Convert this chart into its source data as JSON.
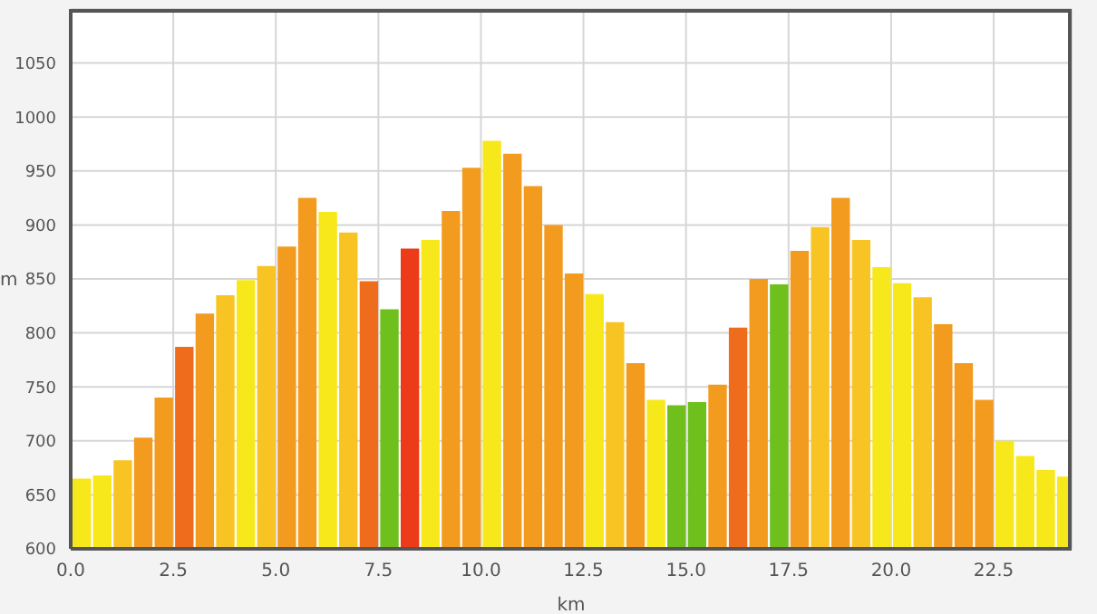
{
  "chart_data": {
    "type": "bar",
    "xlabel": "km",
    "ylabel": "m",
    "x": [
      0.25,
      0.75,
      1.25,
      1.75,
      2.25,
      2.75,
      3.25,
      3.75,
      4.25,
      4.75,
      5.25,
      5.75,
      6.25,
      6.75,
      7.25,
      7.75,
      8.25,
      8.75,
      9.25,
      9.75,
      10.25,
      10.75,
      11.25,
      11.75,
      12.25,
      12.75,
      13.25,
      13.75,
      14.25,
      14.75,
      15.25,
      15.75,
      16.25,
      16.75,
      17.25,
      17.75,
      18.25,
      18.75,
      19.25,
      19.75,
      20.25,
      20.75,
      21.25,
      21.75,
      22.25,
      22.75,
      23.25,
      23.75,
      24.25
    ],
    "values": [
      665,
      668,
      682,
      703,
      740,
      787,
      818,
      835,
      849,
      862,
      880,
      925,
      912,
      893,
      848,
      822,
      878,
      886,
      913,
      953,
      978,
      966,
      936,
      900,
      855,
      836,
      810,
      772,
      738,
      733,
      736,
      752,
      805,
      850,
      845,
      876,
      898,
      925,
      886,
      861,
      846,
      833,
      808,
      772,
      738,
      700,
      686,
      673,
      667
    ],
    "colors": [
      "#f7e81c",
      "#f7e81c",
      "#f8c423",
      "#f39b1f",
      "#f39b1f",
      "#ef6c1d",
      "#f39b1f",
      "#f8c423",
      "#f7e81c",
      "#f8c423",
      "#f39b1f",
      "#f39b1f",
      "#f7e81c",
      "#f8c423",
      "#ef6c1d",
      "#6fc01d",
      "#ec3b18",
      "#f7e81c",
      "#f39b1f",
      "#f39b1f",
      "#f7e81c",
      "#f39b1f",
      "#f39b1f",
      "#f39b1f",
      "#f39b1f",
      "#f7e81c",
      "#f8c423",
      "#f39b1f",
      "#f7e81c",
      "#6fc01d",
      "#6fc01d",
      "#f39b1f",
      "#ef6c1d",
      "#f39b1f",
      "#6fc01d",
      "#f39b1f",
      "#f8c423",
      "#f39b1f",
      "#f8c423",
      "#f7e81c",
      "#f7e81c",
      "#f8c423",
      "#f39b1f",
      "#f39b1f",
      "#f39b1f",
      "#f7e81c",
      "#f7e81c",
      "#f7e81c",
      "#f7e81c"
    ],
    "xlim": [
      0,
      24.4
    ],
    "xticks": [
      {
        "value": 0,
        "label": "0.0"
      },
      2.5,
      {
        "value": 5,
        "label": "5.0"
      },
      7.5,
      {
        "value": 10,
        "label": "10.0"
      },
      12.5,
      {
        "value": 15,
        "label": "15.0"
      },
      17.5,
      {
        "value": 20,
        "label": "20.0"
      },
      22.5
    ],
    "ylim": [
      600,
      1100
    ],
    "yticks": [
      600,
      650,
      700,
      750,
      800,
      850,
      900,
      950,
      1000,
      1050
    ],
    "grid": true
  }
}
